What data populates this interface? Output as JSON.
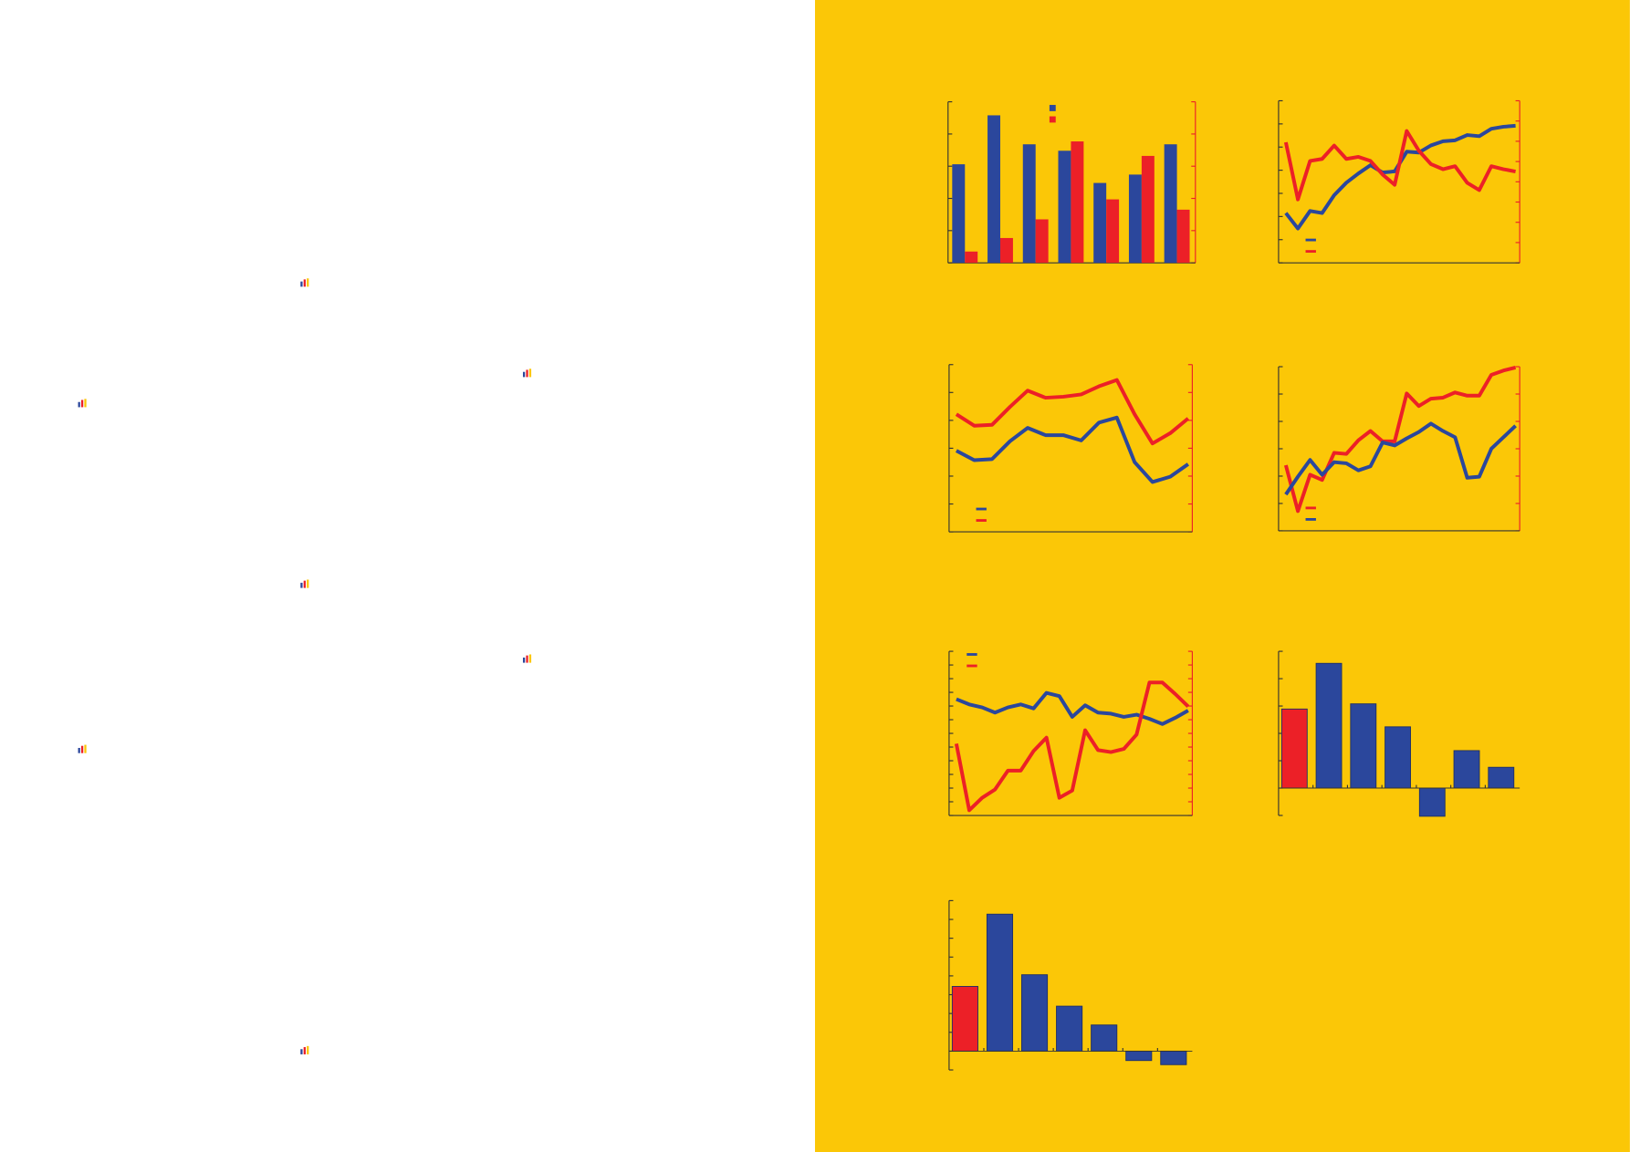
{
  "chart_data": [
    {
      "type": "bar",
      "legend": "top",
      "series": [
        {
          "color": "#2b479c",
          "values": [
            3.06,
            4.58,
            3.68,
            3.48,
            2.48,
            2.74,
            3.68
          ]
        },
        {
          "color": "#ec2027",
          "axis": "y2",
          "values": [
            0.35,
            0.77,
            1.35,
            3.77,
            1.97,
            3.32,
            1.65
          ]
        }
      ],
      "ylim": [
        0,
        5
      ],
      "yticks": [
        0,
        1,
        2,
        3,
        4,
        5
      ],
      "y2lim": [
        0,
        5
      ],
      "y2ticks": [
        0,
        1,
        2,
        3,
        4,
        5
      ]
    },
    {
      "type": "line",
      "legend": "bottom-left",
      "series": [
        {
          "color": "#2b479c",
          "values": [
            2.15,
            1.48,
            2.24,
            2.15,
            2.92,
            3.46,
            3.86,
            4.22,
            3.9,
            3.95,
            4.8,
            4.76,
            5.07,
            5.25,
            5.29,
            5.52,
            5.47,
            5.79,
            5.88,
            5.92
          ]
        },
        {
          "color": "#ec2027",
          "axis": "y2",
          "values": [
            5.95,
            3.13,
            5.03,
            5.13,
            5.79,
            5.13,
            5.23,
            5.03,
            4.36,
            3.85,
            6.51,
            5.54,
            4.87,
            4.62,
            4.77,
            3.95,
            3.59,
            4.77,
            4.62,
            4.51
          ]
        }
      ],
      "ylim": [
        0,
        7
      ],
      "yticks": [
        0,
        1,
        2,
        3,
        4,
        5,
        6,
        7
      ],
      "y2lim": [
        0,
        8
      ],
      "y2ticks": [
        0,
        1,
        2,
        3,
        4,
        5,
        6,
        7,
        8
      ]
    },
    {
      "type": "line",
      "legend": "bottom-left",
      "series": [
        {
          "color": "#2b479c",
          "values": [
            2.91,
            2.57,
            2.61,
            3.25,
            3.73,
            3.47,
            3.47,
            3.28,
            3.92,
            4.1,
            2.5,
            1.79,
            1.98,
            2.43
          ]
        },
        {
          "color": "#ec2027",
          "axis": "y2",
          "values": [
            4.22,
            3.81,
            3.84,
            4.48,
            5.07,
            4.81,
            4.85,
            4.93,
            5.22,
            5.45,
            4.22,
            3.17,
            3.54,
            4.07
          ]
        }
      ],
      "ylim": [
        0,
        6
      ],
      "yticks": [
        0,
        1,
        2,
        3,
        4,
        5,
        6
      ],
      "y2lim": [
        0,
        6
      ],
      "y2ticks": [
        0,
        1,
        2,
        3,
        4,
        5,
        6
      ]
    },
    {
      "type": "line",
      "legend": "bottom-left",
      "series": [
        {
          "color": "#ec2027",
          "axis": "y2",
          "values": [
            2.4,
            0.72,
            2.05,
            1.86,
            2.85,
            2.81,
            3.31,
            3.65,
            3.27,
            3.27,
            5.02,
            4.56,
            4.83,
            4.87,
            5.06,
            4.94,
            4.94,
            5.7,
            5.86,
            5.97
          ]
        },
        {
          "color": "#2b479c",
          "values": [
            1.33,
            1.98,
            2.59,
            2.05,
            2.51,
            2.47,
            2.21,
            2.36,
            3.23,
            3.12,
            3.38,
            3.61,
            3.92,
            3.65,
            3.42,
            1.94,
            1.98,
            3.0,
            3.42,
            3.84
          ]
        }
      ],
      "ylim": [
        0,
        6
      ],
      "yticks": [
        0,
        1,
        2,
        3,
        4,
        5,
        6
      ],
      "y2lim": [
        0,
        6
      ],
      "y2ticks": [
        0,
        1,
        2,
        3,
        4,
        5,
        6
      ]
    },
    {
      "type": "line",
      "legend": "top-left",
      "series": [
        {
          "color": "#2b479c",
          "values": [
            8.5,
            8.12,
            7.9,
            7.52,
            7.9,
            8.12,
            7.82,
            8.96,
            8.73,
            7.21,
            8.05,
            7.52,
            7.44,
            7.21,
            7.37,
            7.06,
            6.68,
            7.14,
            7.67
          ]
        },
        {
          "color": "#ec2027",
          "axis": "y2",
          "values": [
            5.24,
            0.38,
            1.29,
            1.9,
            3.27,
            3.27,
            4.71,
            5.69,
            1.29,
            1.82,
            6.23,
            4.78,
            4.63,
            4.86,
            5.92,
            9.72,
            9.72,
            8.88,
            7.97
          ]
        }
      ],
      "ylim": [
        0,
        12
      ],
      "yticks": [
        0,
        1,
        2,
        3,
        4,
        5,
        6,
        7,
        8,
        9,
        10,
        11,
        12
      ],
      "y2lim": [
        0,
        12
      ],
      "y2ticks": [
        0,
        1,
        2,
        3,
        4,
        5,
        6,
        7,
        8,
        9,
        10,
        11,
        12
      ]
    },
    {
      "type": "column",
      "values": [
        2.89,
        4.56,
        3.08,
        2.24,
        -1.03,
        1.37,
        0.76
      ],
      "colors": [
        "#ec2027",
        "#2b479c",
        "#2b479c",
        "#2b479c",
        "#2b479c",
        "#2b479c",
        "#2b479c"
      ],
      "ylim": [
        -1,
        5
      ],
      "yticks": [
        -1,
        0,
        1,
        2,
        3,
        4,
        5
      ]
    },
    {
      "type": "column",
      "values": [
        3.44,
        7.28,
        4.06,
        2.39,
        1.39,
        -0.5,
        -0.72
      ],
      "colors": [
        "#ec2027",
        "#2b479c",
        "#2b479c",
        "#2b479c",
        "#2b479c",
        "#2b479c",
        "#2b479c"
      ],
      "ylim": [
        -1,
        8
      ],
      "yticks": [
        -1,
        0,
        1,
        2,
        3,
        4,
        5,
        6,
        7,
        8
      ]
    }
  ]
}
